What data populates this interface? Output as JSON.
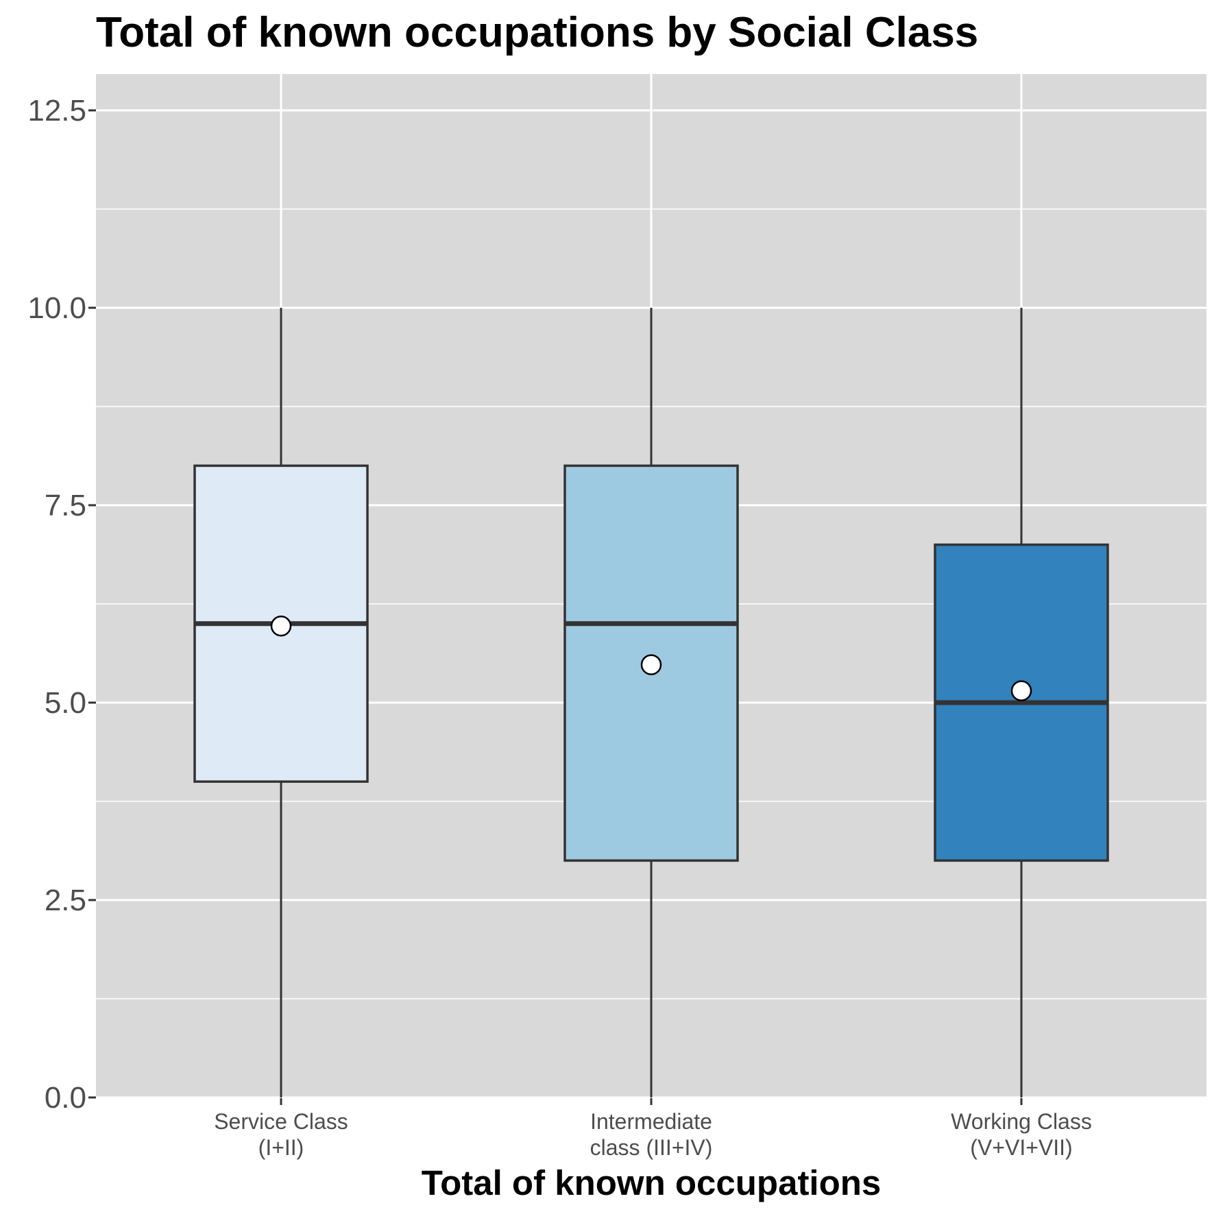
{
  "chart_data": {
    "type": "boxplot",
    "title": "Total of known occupations by Social Class",
    "xlabel": "Total of known occupations",
    "ylabel": "",
    "ylim": [
      0,
      13
    ],
    "y_ticks": [
      "0.0",
      "2.5",
      "5.0",
      "7.5",
      "10.0",
      "12.5"
    ],
    "y_tick_values": [
      0,
      2.5,
      5,
      7.5,
      10,
      12.5
    ],
    "y_minor_grid": [
      1.25,
      3.75,
      6.25,
      8.75,
      11.25
    ],
    "grid": true,
    "legend": "none",
    "panel_color": "#d9d9d9",
    "grid_color": "#ffffff",
    "outline_color": "#333333",
    "categories": [
      {
        "label_lines": [
          "Service Class",
          "(I+II)"
        ],
        "min": 0,
        "q1": 4,
        "median": 6,
        "q3": 8,
        "max": 10,
        "mean": 5.97,
        "fill": "#deebf7"
      },
      {
        "label_lines": [
          "Intermediate",
          "class (III+IV)"
        ],
        "min": 0,
        "q1": 3,
        "median": 6,
        "q3": 8,
        "max": 10,
        "mean": 5.48,
        "fill": "#9ecae1"
      },
      {
        "label_lines": [
          "Working Class",
          "(V+VI+VII)"
        ],
        "min": 0,
        "q1": 3,
        "median": 5,
        "q3": 7,
        "max": 10,
        "mean": 5.15,
        "fill": "#3182bd"
      }
    ]
  }
}
